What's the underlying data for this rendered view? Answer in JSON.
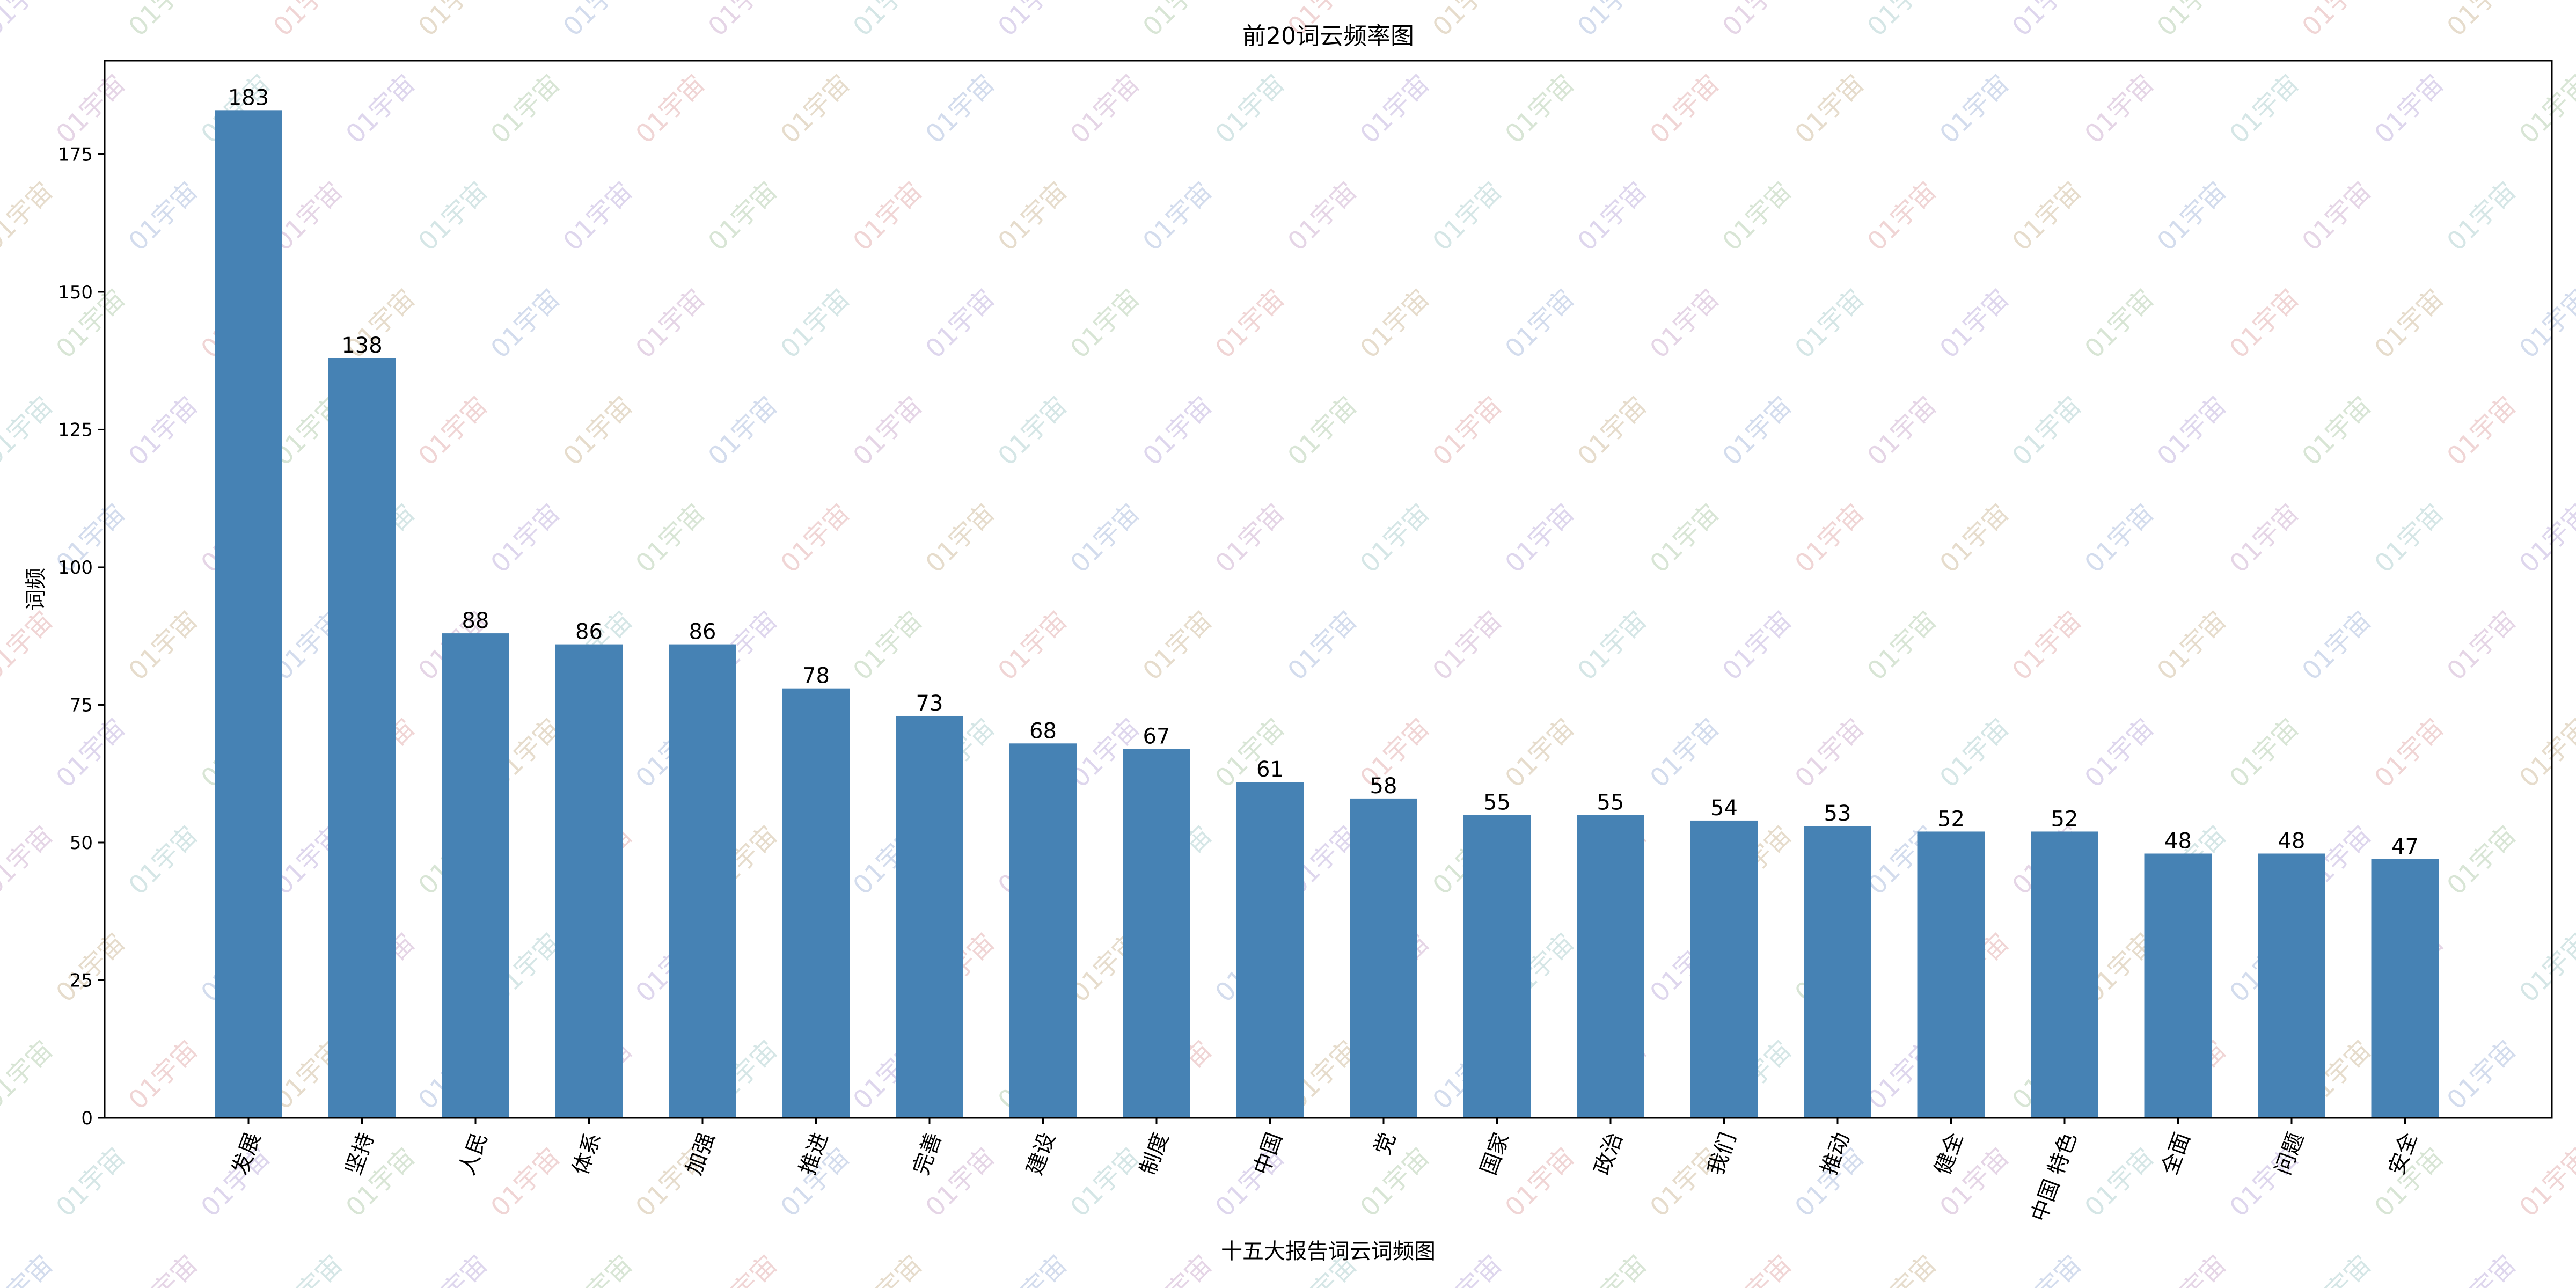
{
  "watermark": {
    "text": "01宇宙",
    "colors": [
      "#b7a6d9",
      "#a9c7a3",
      "#e0a3a3",
      "#c9b38f",
      "#9fb3d9",
      "#c7a3c9",
      "#a3c9c9"
    ]
  },
  "chart_data": {
    "type": "bar",
    "title": "前20词云频率图",
    "xlabel": "十五大报告词云词频图",
    "ylabel": "词频",
    "categories": [
      "发展",
      "坚持",
      "人民",
      "体系",
      "加强",
      "推进",
      "完善",
      "建设",
      "制度",
      "中国",
      "党",
      "国家",
      "政治",
      "我们",
      "推动",
      "健全",
      "中国 特色",
      "全面",
      "问题",
      "安全"
    ],
    "values": [
      183,
      138,
      88,
      86,
      86,
      78,
      73,
      68,
      67,
      61,
      58,
      55,
      55,
      54,
      53,
      52,
      52,
      48,
      48,
      47
    ],
    "ylim": [
      0,
      192
    ],
    "yticks": [
      0,
      25,
      50,
      75,
      100,
      125,
      150,
      175
    ],
    "bar_color": "#4682b4",
    "grid": false,
    "legend": false
  }
}
